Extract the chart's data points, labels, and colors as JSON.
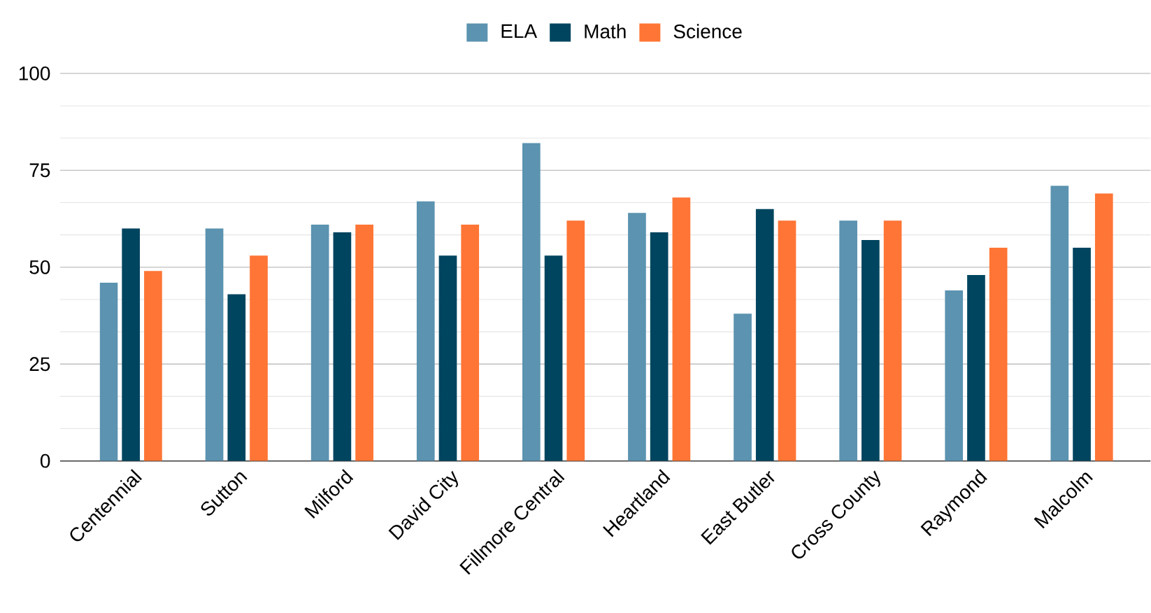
{
  "chart_data": {
    "type": "bar",
    "categories": [
      "Centennial",
      "Sutton",
      "Milford",
      "David City",
      "Fillmore Central",
      "Heartland",
      "East Butler",
      "Cross County",
      "Raymond",
      "Malcolm"
    ],
    "series": [
      {
        "name": "ELA",
        "color": "#5b93b0",
        "values": [
          46,
          60,
          61,
          67,
          82,
          64,
          38,
          62,
          44,
          71
        ]
      },
      {
        "name": "Math",
        "color": "#00455f",
        "values": [
          60,
          43,
          59,
          53,
          53,
          59,
          65,
          57,
          48,
          55
        ]
      },
      {
        "name": "Science",
        "color": "#ff7535",
        "values": [
          49,
          53,
          61,
          61,
          62,
          68,
          62,
          62,
          55,
          69
        ]
      }
    ],
    "ylim": [
      0,
      100
    ],
    "yticks": [
      0,
      25,
      50,
      75,
      100
    ],
    "grid": "y",
    "legend": "top"
  }
}
